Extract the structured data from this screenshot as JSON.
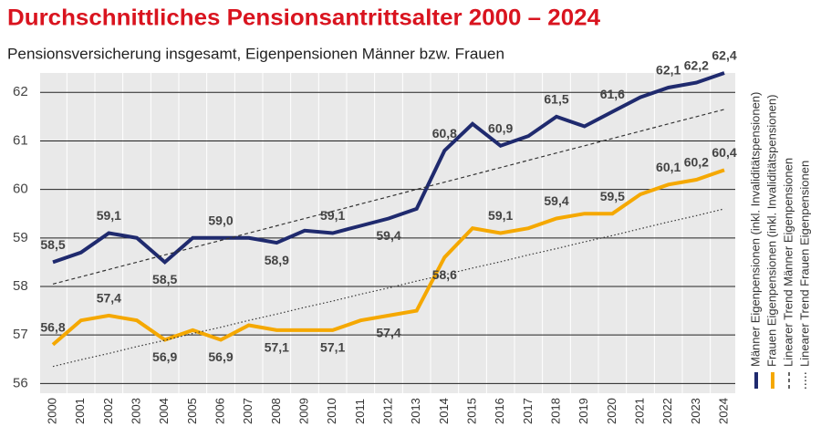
{
  "chart_data": {
    "type": "line",
    "title": "Durchschnittliches Pensionsantrittsalter 2000 – 2024",
    "subtitle": "Pensionsversicherung insgesamt, Eigenpensionen Männer bzw. Frauen",
    "x": [
      "2000",
      "2001",
      "2002",
      "2003",
      "2004",
      "2005",
      "2006",
      "2007",
      "2008",
      "2009",
      "2010",
      "2011",
      "2012",
      "2013",
      "2014",
      "2015",
      "2016",
      "2017",
      "2018",
      "2019",
      "2020",
      "2021",
      "2022",
      "2023",
      "2024"
    ],
    "series": [
      {
        "name": "Männer Eigenpensionen (inkl. Invaliditätspensionen)",
        "color": "#1f2a6e",
        "style": "solid",
        "values": [
          58.5,
          58.7,
          59.1,
          59.0,
          58.5,
          59.0,
          59.0,
          59.0,
          58.9,
          59.15,
          59.1,
          59.25,
          59.4,
          59.6,
          60.8,
          61.35,
          60.9,
          61.1,
          61.5,
          61.3,
          61.6,
          61.9,
          62.1,
          62.2,
          62.4
        ],
        "value_labels": [
          "58,5",
          null,
          "59,1",
          null,
          "58,5",
          null,
          "59,0",
          null,
          "58,9",
          null,
          "59,1",
          null,
          "59,4",
          null,
          "60,8",
          null,
          "60,9",
          null,
          "61,5",
          null,
          "61,6",
          null,
          "62,1",
          "62,2",
          "62,4"
        ]
      },
      {
        "name": "Frauen Eigenpensionen (inkl. Invaliditätspensionen)",
        "color": "#f5a800",
        "style": "solid",
        "values": [
          56.8,
          57.3,
          57.4,
          57.3,
          56.9,
          57.1,
          56.9,
          57.2,
          57.1,
          57.1,
          57.1,
          57.3,
          57.4,
          57.5,
          58.6,
          59.2,
          59.1,
          59.2,
          59.4,
          59.5,
          59.5,
          59.9,
          60.1,
          60.2,
          60.4
        ],
        "value_labels": [
          "56,8",
          null,
          "57,4",
          null,
          "56,9",
          null,
          "56,9",
          null,
          "57,1",
          null,
          "57,1",
          null,
          "57,4",
          null,
          "58,6",
          null,
          "59,1",
          null,
          "59,4",
          null,
          "59,5",
          null,
          "60,1",
          "60,2",
          "60,4"
        ]
      },
      {
        "name": "Linearer Trend Männer Eigenpensionen",
        "color": "#333333",
        "style": "dashed",
        "values": [
          58.05,
          58.2,
          58.35,
          58.5,
          58.65,
          58.8,
          58.95,
          59.1,
          59.25,
          59.4,
          59.55,
          59.7,
          59.85,
          60.0,
          60.15,
          60.3,
          60.45,
          60.6,
          60.75,
          60.9,
          61.05,
          61.2,
          61.35,
          61.5,
          61.65
        ]
      },
      {
        "name": "Linearer Trend Frauen Eigenpensionen",
        "color": "#333333",
        "style": "dotted",
        "values": [
          56.35,
          56.49,
          56.62,
          56.76,
          56.89,
          57.03,
          57.16,
          57.3,
          57.43,
          57.57,
          57.7,
          57.84,
          57.97,
          58.11,
          58.24,
          58.38,
          58.51,
          58.65,
          58.78,
          58.92,
          59.05,
          59.19,
          59.33,
          59.46,
          59.6
        ]
      }
    ],
    "ylim": [
      55.8,
      62.4
    ],
    "yticks": [
      56,
      57,
      58,
      59,
      60,
      61,
      62
    ],
    "grid": true
  }
}
